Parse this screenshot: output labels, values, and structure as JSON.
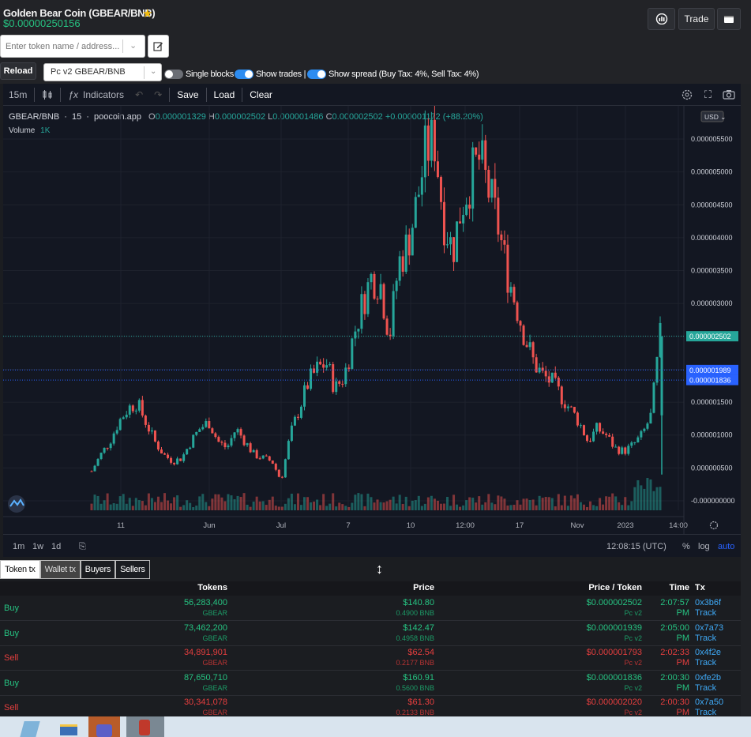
{
  "header": {
    "title": "Golden Bear Coin (GBEAR/BNB)",
    "price": "$0.00000250156",
    "trade_label": "Trade",
    "search_placeholder": "Enter token name / address...",
    "reload_label": "Reload",
    "pair_select_value": "Pc v2 GBEAR/BNB",
    "toggles": [
      {
        "label": "Single blocks",
        "on": false
      },
      {
        "label": "Show trades |",
        "on": true
      },
      {
        "label": "Show spread (Buy Tax: 4%, Sell Tax: 4%)",
        "on": true
      }
    ]
  },
  "chart": {
    "toolbar": {
      "interval": "15m",
      "indicators": "Indicators",
      "save": "Save",
      "load": "Load",
      "clear": "Clear"
    },
    "legend": {
      "symbol": "GBEAR/BNB",
      "interval": "15",
      "source": "poocoin.app",
      "o_label": "O",
      "o": "0.000001329",
      "h_label": "H",
      "h": "0.000002502",
      "l_label": "L",
      "l": "0.000001486",
      "c_label": "C",
      "c": "0.000002502",
      "change": "+0.000001172 (+88.20%)",
      "volume_label": "Volume",
      "volume": "1K"
    },
    "currency": "USD",
    "price_labels": {
      "last": "0.000002502",
      "spread_high": "0.000001989",
      "spread_low": "0.000001836"
    },
    "bottom": {
      "ranges": [
        "1m",
        "1w",
        "1d"
      ],
      "time": "12:08:15 (UTC)",
      "percent": "%",
      "log": "log",
      "auto": "auto"
    }
  },
  "chart_data": {
    "type": "candlestick",
    "y_ticks": [
      "0.000005500",
      "0.000005000",
      "0.000004500",
      "0.000004000",
      "0.000003500",
      "0.000003000",
      "0.000002500",
      "0.000002000",
      "0.000001500",
      "0.000001000",
      "0.000000500",
      "-0.000000000"
    ],
    "x_ticks": [
      "11",
      "Jun",
      "Jul",
      "7",
      "10",
      "12:00",
      "17",
      "Nov",
      "2023",
      "14:00"
    ],
    "ylim": [
      0,
      5.5e-06
    ],
    "close_series": [
      4.5e-07,
      7e-07,
      9e-07,
      1.2e-06,
      1.4e-06,
      1.5e-06,
      1.2e-06,
      9e-07,
      7e-07,
      6e-07,
      6.5e-07,
      9e-07,
      1.1e-06,
      1.2e-06,
      9e-07,
      8e-07,
      1.1e-06,
      9e-07,
      7e-07,
      6.5e-07,
      6e-07,
      3e-07,
      1e-06,
      1.4e-06,
      1.8e-06,
      2e-06,
      2.1e-06,
      1.7e-06,
      1.9e-06,
      2.5e-06,
      3e-06,
      3.4e-06,
      3.3e-06,
      2.5e-06,
      3.6e-06,
      3.9e-06,
      4.5e-06,
      5.3e-06,
      5.5e-06,
      4.3e-06,
      3.8e-06,
      4.5e-06,
      4.9e-06,
      5.2e-06,
      4.7e-06,
      4.2e-06,
      3.5e-06,
      3e-06,
      2.5e-06,
      2.1e-06,
      1.9e-06,
      1.8e-06,
      1.6e-06,
      1.4e-06,
      1.2e-06,
      9e-07,
      1.1e-06,
      1e-06,
      8e-07,
      7.5e-07,
      8.5e-07,
      1e-06,
      1.3e-06,
      2.5e-06
    ]
  },
  "tabs": [
    "Token tx",
    "Wallet tx",
    "Buyers",
    "Sellers"
  ],
  "table": {
    "headers": {
      "tokens": "Tokens",
      "price": "Price",
      "price_token": "Price / Token",
      "time": "Time",
      "tx": "Tx"
    },
    "rows": [
      {
        "type": "Buy",
        "tokens": "56,283,400",
        "token_sym": "GBEAR",
        "price": "$140.80",
        "price_bnb": "0.4900 BNB",
        "ppt": "$0.000002502",
        "dex": "Pc v2",
        "time1": "2:07:57",
        "time2": "PM",
        "tx": "0x3b6f",
        "track": "Track"
      },
      {
        "type": "Buy",
        "tokens": "73,462,200",
        "token_sym": "GBEAR",
        "price": "$142.47",
        "price_bnb": "0.4958 BNB",
        "ppt": "$0.000001939",
        "dex": "Pc v2",
        "time1": "2:05:00",
        "time2": "PM",
        "tx": "0x7a73",
        "track": "Track"
      },
      {
        "type": "Sell",
        "tokens": "34,891,901",
        "token_sym": "GBEAR",
        "price": "$62.54",
        "price_bnb": "0.2177 BNB",
        "ppt": "$0.000001793",
        "dex": "Pc v2",
        "time1": "2:02:33",
        "time2": "PM",
        "tx": "0x4f2e",
        "track": "Track"
      },
      {
        "type": "Buy",
        "tokens": "87,650,710",
        "token_sym": "GBEAR",
        "price": "$160.91",
        "price_bnb": "0.5600 BNB",
        "ppt": "$0.000001836",
        "dex": "Pc v2",
        "time1": "2:00:30",
        "time2": "PM",
        "tx": "0xfe2b",
        "track": "Track"
      },
      {
        "type": "Sell",
        "tokens": "30,341,078",
        "token_sym": "GBEAR",
        "price": "$61.30",
        "price_bnb": "0.2133 BNB",
        "ppt": "$0.000002020",
        "dex": "Pc v2",
        "time1": "2:00:30",
        "time2": "PM",
        "tx": "0x7a50",
        "track": "Track"
      }
    ]
  }
}
